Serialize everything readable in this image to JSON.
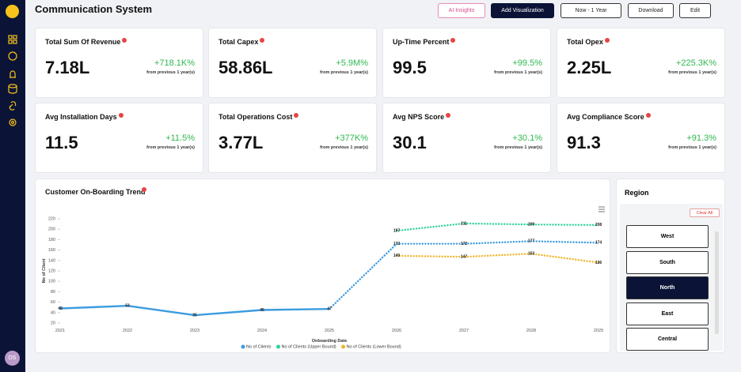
{
  "header": {
    "title": "Communication System",
    "buttons": [
      "AI Insights",
      "Add Visualization",
      "Now - 1 Year",
      "Download",
      "Edit"
    ]
  },
  "kpis": [
    {
      "title": "Total Sum Of Revenue",
      "value": "7.18L",
      "change": "+718.1K%",
      "note": "from previous 1 year(s)"
    },
    {
      "title": "Total Capex",
      "value": "58.86L",
      "change": "+5.9M%",
      "note": "from previous 1 year(s)"
    },
    {
      "title": "Up-Time Percent",
      "value": "99.5",
      "change": "+99.5%",
      "note": "from previous 1 year(s)"
    },
    {
      "title": "Total Opex",
      "value": "2.25L",
      "change": "+225.3K%",
      "note": "from previous 1 year(s)"
    },
    {
      "title": "Avg Installation Days",
      "value": "11.5",
      "change": "+11.5%",
      "note": "from previous 1 year(s)"
    },
    {
      "title": "Total Operations Cost",
      "value": "3.77L",
      "change": "+377K%",
      "note": "from previous 1 year(s)"
    },
    {
      "title": "Avg NPS Score",
      "value": "30.1",
      "change": "+30.1%",
      "note": "from previous 1 year(s)"
    },
    {
      "title": "Avg Compliance Score",
      "value": "91.3",
      "change": "+91.3%",
      "note": "from previous 1 year(s)"
    }
  ],
  "chart_data": {
    "type": "line",
    "title": "Customer On-Boarding Trend",
    "x_label": "Onboarding Date",
    "y_label": "No of Client",
    "categories": [
      "2021",
      "2022",
      "2023",
      "2024",
      "2025",
      "2026",
      "2027",
      "2028",
      "2029"
    ],
    "forecast_from": "2025",
    "series": [
      {
        "name": "No of Clients",
        "color": "#3b9be0",
        "values": [
          48,
          53,
          35,
          45,
          47,
          172,
          172,
          177,
          174
        ]
      },
      {
        "name": "No of Clients (Upper Bound)",
        "color": "#2fd39a",
        "values": [
          null,
          null,
          null,
          null,
          null,
          197,
          211,
          209,
          208
        ]
      },
      {
        "name": "No of Clients (Lower Bound)",
        "color": "#f0b429",
        "values": [
          null,
          null,
          null,
          null,
          null,
          149,
          147,
          153,
          136
        ]
      }
    ],
    "ylim": [
      20,
      220
    ],
    "yticks": [
      20,
      40,
      60,
      80,
      100,
      120,
      140,
      160,
      180,
      200,
      220
    ],
    "legend": "bottom"
  },
  "region": {
    "title": "Region",
    "clear": "Clear All",
    "items": [
      "West",
      "South",
      "North",
      "East",
      "Central"
    ],
    "selected": "North"
  },
  "user": {
    "initials": "DS"
  }
}
